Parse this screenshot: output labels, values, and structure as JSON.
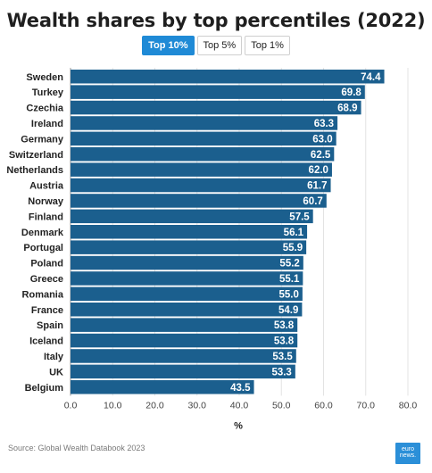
{
  "chart_data": {
    "type": "bar",
    "orientation": "horizontal",
    "title": "Wealth shares by top percentiles (2022)",
    "categories": [
      "Sweden",
      "Turkey",
      "Czechia",
      "Ireland",
      "Germany",
      "Switzerland",
      "Netherlands",
      "Austria",
      "Norway",
      "Finland",
      "Denmark",
      "Portugal",
      "Poland",
      "Greece",
      "Romania",
      "France",
      "Spain",
      "Iceland",
      "Italy",
      "UK",
      "Belgium"
    ],
    "values": [
      74.4,
      69.8,
      68.9,
      63.3,
      63.0,
      62.5,
      62.0,
      61.7,
      60.7,
      57.5,
      56.1,
      55.9,
      55.2,
      55.1,
      55.0,
      54.9,
      53.8,
      53.8,
      53.5,
      53.3,
      43.5
    ],
    "value_labels": [
      "74.4",
      "69.8",
      "68.9",
      "63.3",
      "63.0",
      "62.5",
      "62.0",
      "61.7",
      "60.7",
      "57.5",
      "56.1",
      "55.9",
      "55.2",
      "55.1",
      "55.0",
      "54.9",
      "53.8",
      "53.8",
      "53.5",
      "53.3",
      "43.5"
    ],
    "xlim": [
      0,
      80
    ],
    "xticks": [
      "0.0",
      "10.0",
      "20.0",
      "30.0",
      "40.0",
      "50.0",
      "60.0",
      "70.0",
      "80.0"
    ],
    "xlabel": "%",
    "ylabel": "",
    "grid": true,
    "bar_color": "#1b5f8e"
  },
  "tabs": [
    {
      "label": "Top 10%"
    },
    {
      "label": "Top 5%"
    },
    {
      "label": "Top 1%"
    }
  ],
  "source": "Source: Global Wealth Databook 2023",
  "logo_text": [
    "euro",
    "news."
  ],
  "colors": {
    "accent": "#1f8ad6",
    "bar": "#1b5f8e",
    "logo": "#2b8fd8"
  }
}
